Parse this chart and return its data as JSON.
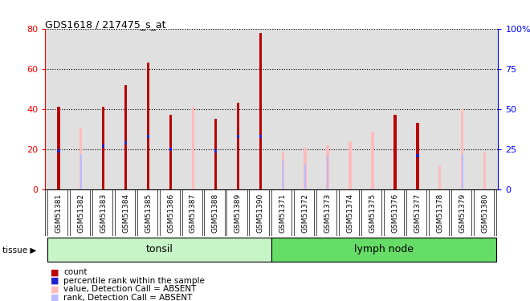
{
  "title": "GDS1618 / 217475_s_at",
  "samples": [
    "GSM51381",
    "GSM51382",
    "GSM51383",
    "GSM51384",
    "GSM51385",
    "GSM51386",
    "GSM51387",
    "GSM51388",
    "GSM51389",
    "GSM51390",
    "GSM51371",
    "GSM51372",
    "GSM51373",
    "GSM51374",
    "GSM51375",
    "GSM51376",
    "GSM51377",
    "GSM51378",
    "GSM51379",
    "GSM51380"
  ],
  "count_values": [
    41,
    0,
    41,
    52,
    63,
    37,
    0,
    35,
    43,
    78,
    0,
    0,
    0,
    0,
    0,
    37,
    33,
    0,
    0,
    0
  ],
  "rank_values": [
    24,
    0,
    27,
    29,
    33,
    25,
    0,
    24,
    33,
    33,
    0,
    0,
    0,
    0,
    0,
    0,
    21,
    0,
    0,
    0
  ],
  "absent_value_vals": [
    0,
    31,
    0,
    0,
    0,
    0,
    41,
    0,
    0,
    0,
    19,
    21,
    22,
    24,
    29,
    0,
    0,
    12,
    40,
    19
  ],
  "absent_rank_vals": [
    0,
    22,
    0,
    0,
    0,
    27,
    0,
    0,
    26,
    0,
    18,
    16,
    21,
    0,
    0,
    21,
    0,
    0,
    22,
    0
  ],
  "groups": [
    "tonsil",
    "tonsil",
    "tonsil",
    "tonsil",
    "tonsil",
    "tonsil",
    "tonsil",
    "tonsil",
    "tonsil",
    "tonsil",
    "lymph node",
    "lymph node",
    "lymph node",
    "lymph node",
    "lymph node",
    "lymph node",
    "lymph node",
    "lymph node",
    "lymph node",
    "lymph node"
  ],
  "tonsil_color": "#c8f5c8",
  "lymph_color": "#66dd66",
  "count_color": "#bb0000",
  "rank_color": "#2222cc",
  "absent_value_color": "#ffbbbb",
  "absent_rank_color": "#bbbbff",
  "ylim_left": [
    0,
    80
  ],
  "ylim_right": [
    0,
    100
  ],
  "yticks_left": [
    0,
    20,
    40,
    60,
    80
  ],
  "yticks_right": [
    0,
    25,
    50,
    75,
    100
  ],
  "bar_width": 0.12,
  "rank_bar_width": 0.12,
  "background_color": "#e0e0e0"
}
